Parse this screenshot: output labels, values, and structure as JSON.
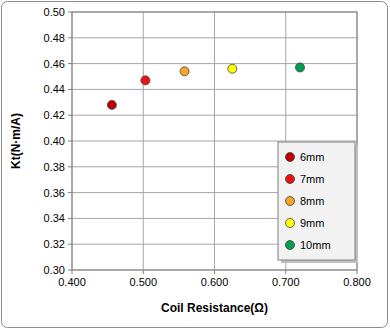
{
  "chart_data": {
    "type": "scatter",
    "x_label": "Coil Resistance(Ω)",
    "y_label": "Kt(N·m/A)",
    "series": [
      {
        "name": "6mm",
        "color": "#c00000",
        "x": [
          0.456
        ],
        "values": [
          0.428
        ]
      },
      {
        "name": "7mm",
        "color": "#ee1111",
        "x": [
          0.503
        ],
        "values": [
          0.447
        ]
      },
      {
        "name": "8mm",
        "color": "#f5a623",
        "x": [
          0.558
        ],
        "values": [
          0.454
        ]
      },
      {
        "name": "9mm",
        "color": "#ffff00",
        "x": [
          0.625
        ],
        "values": [
          0.456
        ]
      },
      {
        "name": "10mm",
        "color": "#00a050",
        "x": [
          0.72
        ],
        "values": [
          0.457
        ]
      }
    ],
    "xlim": [
      0.4,
      0.8
    ],
    "xticks": [
      {
        "value": 0.4,
        "label": "0.400"
      },
      {
        "value": 0.5,
        "label": "0.500"
      },
      {
        "value": 0.6,
        "label": "0.600"
      },
      {
        "value": 0.7,
        "label": "0.700"
      },
      {
        "value": 0.8,
        "label": "0.800"
      }
    ],
    "ylim": [
      0.3,
      0.5
    ],
    "yticks": [
      {
        "value": 0.3,
        "label": "0.30"
      },
      {
        "value": 0.32,
        "label": "0.32"
      },
      {
        "value": 0.34,
        "label": "0.34"
      },
      {
        "value": 0.36,
        "label": "0.36"
      },
      {
        "value": 0.38,
        "label": "0.38"
      },
      {
        "value": 0.4,
        "label": "0.40"
      },
      {
        "value": 0.42,
        "label": "0.42"
      },
      {
        "value": 0.44,
        "label": "0.44"
      },
      {
        "value": 0.46,
        "label": "0.46"
      },
      {
        "value": 0.48,
        "label": "0.48"
      },
      {
        "value": 0.5,
        "label": "0.50"
      }
    ],
    "grid": true,
    "legend": "lower right",
    "marker": "circle"
  }
}
